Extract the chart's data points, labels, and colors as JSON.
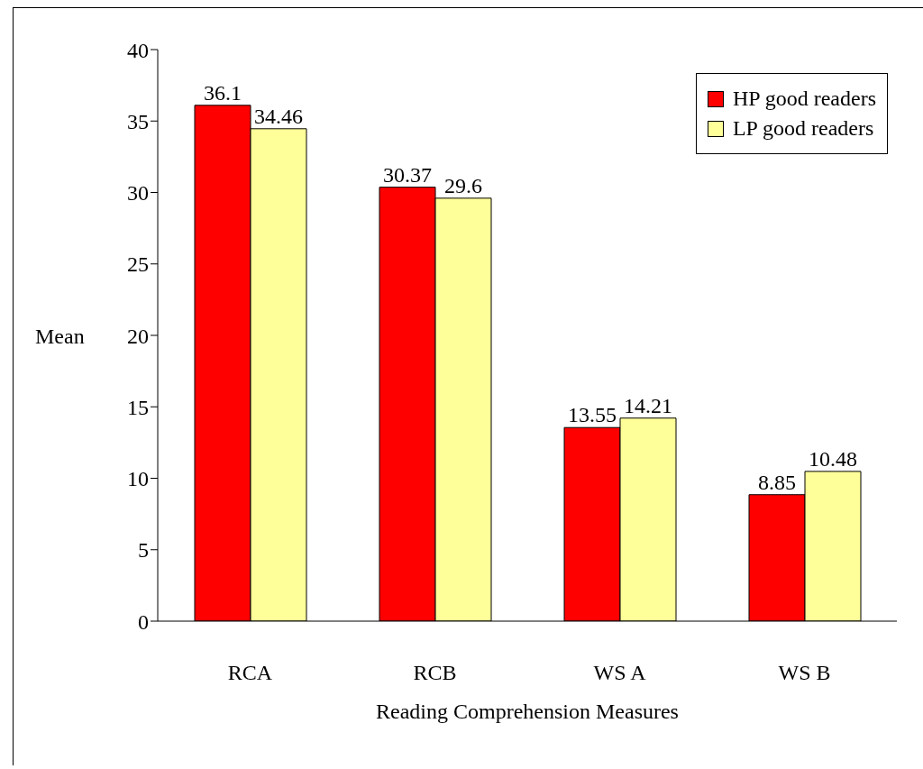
{
  "chart_data": {
    "type": "bar",
    "xlabel": "Reading Comprehension Measures",
    "ylabel": "Mean",
    "categories": [
      "RCA",
      "RCB",
      "WS A",
      "WS B"
    ],
    "series": [
      {
        "name": "HP good readers",
        "color": "#ff0000",
        "values": [
          36.1,
          30.37,
          13.55,
          8.85
        ]
      },
      {
        "name": "LP good readers",
        "color": "#ffff99",
        "values": [
          34.46,
          29.6,
          14.21,
          10.48
        ]
      }
    ],
    "ylim": [
      0,
      40
    ],
    "yticks": [
      0,
      5,
      10,
      15,
      20,
      25,
      30,
      35,
      40
    ],
    "grid": false,
    "legend": "top right",
    "data_labels": true
  }
}
